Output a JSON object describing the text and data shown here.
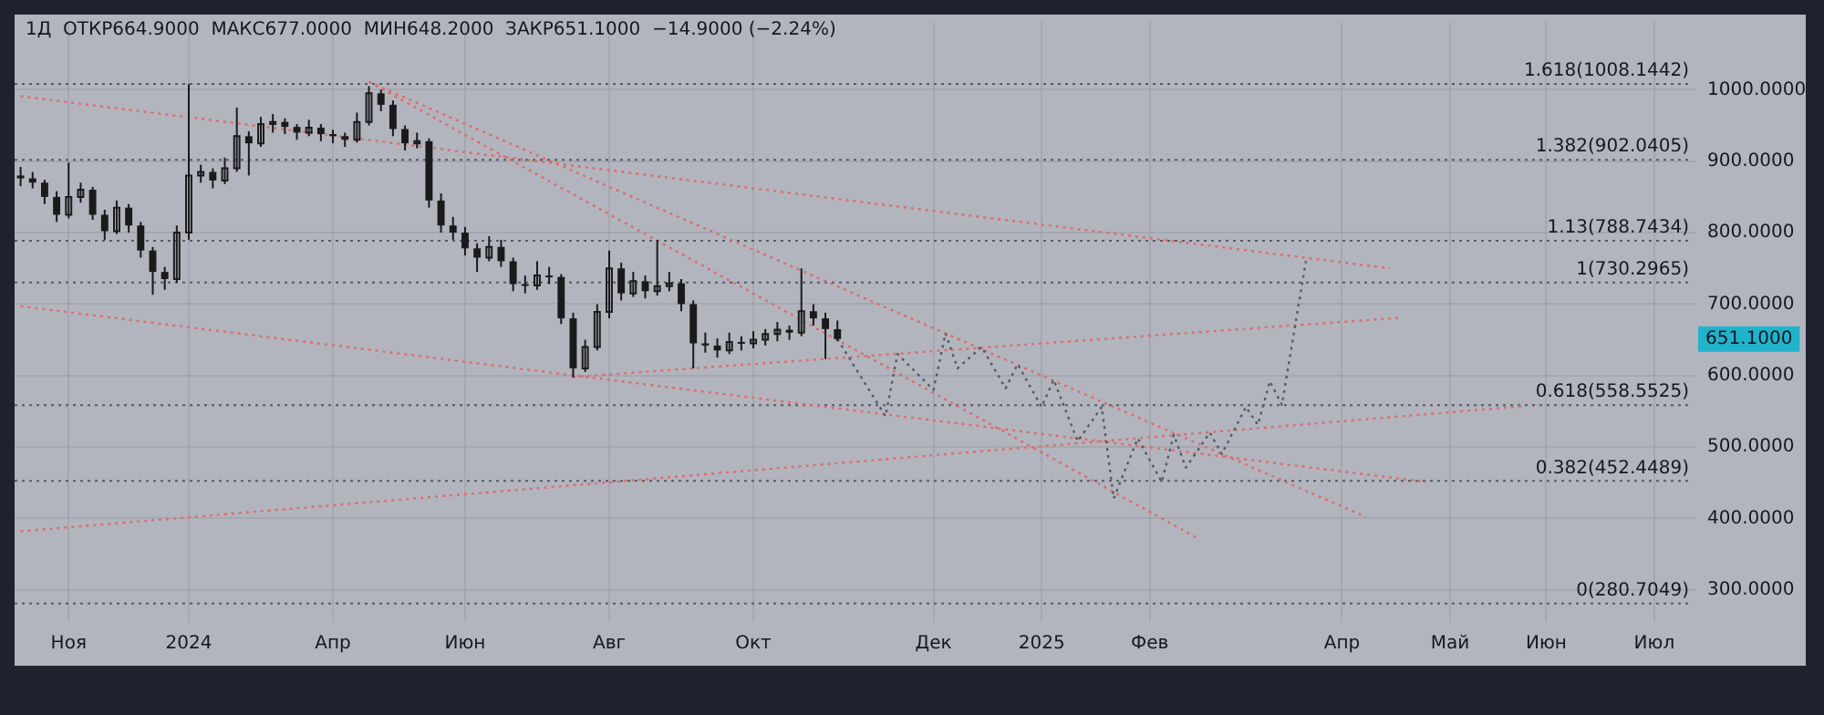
{
  "chart_data": {
    "type": "candlestick",
    "title": "1Д  ОТКР664.9000  МАКС677.0000  МИН648.2000  ЗАКР651.1000  −14.9000 (−2.24%)",
    "color": "#1a1a1a",
    "grid": true,
    "legend": false,
    "marker": "none",
    "categories": [
      null,
      null,
      null,
      null,
      "Ноя",
      null,
      null,
      null,
      null,
      null,
      null,
      null,
      null,
      null,
      "2024",
      null,
      null,
      null,
      null,
      null,
      null,
      null,
      null,
      null,
      null,
      null,
      "Апр",
      null,
      null,
      null,
      null,
      null,
      null,
      null,
      null,
      null,
      null,
      "Июн",
      null,
      null,
      null,
      null,
      null,
      null,
      null,
      null,
      null,
      null,
      null,
      "Авг",
      null,
      null,
      null,
      null,
      null,
      null,
      null,
      null,
      null,
      null,
      null,
      "Окт",
      null,
      null,
      null,
      null,
      null,
      null,
      null,
      null,
      null,
      null,
      null,
      null,
      null,
      null,
      "Дек",
      null,
      null,
      null,
      null,
      null,
      null,
      null,
      null,
      "2025",
      null,
      null,
      null,
      null,
      null,
      null,
      null,
      null,
      "Фев",
      null,
      null,
      null,
      null,
      null,
      null,
      null,
      null,
      null,
      null,
      null,
      null,
      null,
      null,
      null,
      "Апр",
      null,
      null,
      null,
      null,
      null,
      null,
      null,
      null,
      "Май",
      null,
      null,
      null,
      null,
      null,
      null,
      null,
      "Июн",
      null,
      null,
      null,
      null,
      null,
      null,
      null,
      null,
      "Июл",
      null,
      null,
      null
    ],
    "ohlc": [
      [
        880,
        892,
        865,
        876
      ],
      [
        876,
        885,
        862,
        870
      ],
      [
        870,
        874,
        840,
        850
      ],
      [
        850,
        858,
        815,
        825
      ],
      [
        825,
        898,
        820,
        850
      ],
      [
        850,
        870,
        842,
        860
      ],
      [
        860,
        864,
        818,
        825
      ],
      [
        825,
        832,
        790,
        802
      ],
      [
        802,
        845,
        798,
        835
      ],
      [
        835,
        840,
        800,
        810
      ],
      [
        810,
        815,
        765,
        775
      ],
      [
        775,
        780,
        713,
        745
      ],
      [
        745,
        752,
        720,
        735
      ],
      [
        735,
        810,
        730,
        800
      ],
      [
        800,
        1008,
        790,
        880
      ],
      [
        880,
        895,
        870,
        885
      ],
      [
        885,
        890,
        862,
        873
      ],
      [
        873,
        905,
        868,
        890
      ],
      [
        890,
        975,
        885,
        935
      ],
      [
        935,
        942,
        880,
        925
      ],
      [
        925,
        962,
        920,
        952
      ],
      [
        952,
        966,
        940,
        955
      ],
      [
        955,
        960,
        938,
        948
      ],
      [
        948,
        952,
        930,
        940
      ],
      [
        940,
        958,
        935,
        947
      ],
      [
        947,
        952,
        928,
        938
      ],
      [
        938,
        944,
        925,
        935
      ],
      [
        935,
        940,
        920,
        930
      ],
      [
        930,
        968,
        926,
        955
      ],
      [
        955,
        1005,
        950,
        995
      ],
      [
        995,
        1000,
        970,
        979
      ],
      [
        979,
        985,
        935,
        945
      ],
      [
        945,
        950,
        915,
        925
      ],
      [
        925,
        940,
        918,
        928
      ],
      [
        928,
        932,
        835,
        845
      ],
      [
        845,
        855,
        800,
        810
      ],
      [
        810,
        822,
        790,
        800
      ],
      [
        800,
        808,
        768,
        778
      ],
      [
        778,
        785,
        745,
        765
      ],
      [
        765,
        795,
        760,
        780
      ],
      [
        780,
        790,
        752,
        760
      ],
      [
        760,
        765,
        718,
        728
      ],
      [
        728,
        740,
        715,
        726
      ],
      [
        726,
        760,
        720,
        740
      ],
      [
        740,
        752,
        728,
        738
      ],
      [
        738,
        742,
        672,
        680
      ],
      [
        680,
        688,
        597,
        610
      ],
      [
        610,
        650,
        605,
        640
      ],
      [
        640,
        700,
        635,
        689
      ],
      [
        689,
        775,
        680,
        750
      ],
      [
        750,
        758,
        705,
        715
      ],
      [
        715,
        745,
        710,
        732
      ],
      [
        732,
        740,
        708,
        718
      ],
      [
        718,
        790,
        712,
        725
      ],
      [
        725,
        745,
        718,
        729
      ],
      [
        729,
        735,
        690,
        700
      ],
      [
        700,
        705,
        610,
        645
      ],
      [
        645,
        660,
        632,
        642
      ],
      [
        642,
        652,
        625,
        635
      ],
      [
        635,
        660,
        630,
        647
      ],
      [
        647,
        655,
        635,
        645
      ],
      [
        645,
        662,
        638,
        650
      ],
      [
        650,
        665,
        642,
        658
      ],
      [
        658,
        675,
        648,
        664
      ],
      [
        664,
        670,
        650,
        660
      ],
      [
        660,
        750,
        655,
        690
      ],
      [
        690,
        700,
        670,
        680
      ],
      [
        680,
        688,
        623,
        665
      ],
      [
        664.9,
        677,
        648.2,
        651.1
      ],
      null,
      null,
      null,
      null,
      null,
      null,
      null,
      null,
      null,
      null,
      null,
      null,
      null,
      null,
      null,
      null,
      null,
      null,
      null,
      null,
      null,
      null,
      null,
      null,
      null,
      null,
      null,
      null,
      null,
      null,
      null,
      null,
      null,
      null,
      null,
      null,
      null,
      null,
      null,
      null,
      null,
      null,
      null,
      null,
      null,
      null,
      null,
      null,
      null,
      null,
      null,
      null,
      null,
      null,
      null,
      null,
      null,
      null,
      null,
      null,
      null,
      null,
      null,
      null,
      null,
      null,
      null,
      null,
      null,
      null,
      null
    ],
    "series": [
      {
        "type": "line",
        "color": "#555a66",
        "line_style": "dotted",
        "values": [
          null,
          null,
          null,
          null,
          null,
          null,
          null,
          null,
          null,
          null,
          null,
          null,
          null,
          null,
          null,
          null,
          null,
          null,
          null,
          null,
          null,
          null,
          null,
          null,
          null,
          null,
          null,
          null,
          null,
          null,
          null,
          null,
          null,
          null,
          null,
          null,
          null,
          null,
          null,
          null,
          null,
          null,
          null,
          null,
          null,
          null,
          null,
          null,
          null,
          null,
          null,
          null,
          null,
          null,
          null,
          null,
          null,
          null,
          null,
          null,
          null,
          null,
          null,
          null,
          null,
          null,
          null,
          null,
          651,
          null,
          null,
          null,
          543,
          630,
          null,
          null,
          580,
          659,
          610,
          null,
          640,
          null,
          582,
          616,
          null,
          556,
          594,
          null,
          508,
          null,
          556,
          428,
          null,
          512,
          null,
          451,
          517,
          471,
          null,
          520,
          490,
          null,
          556,
          531,
          592,
          559,
          null,
          760,
          null,
          null,
          null,
          null,
          null,
          null,
          null,
          null,
          null,
          null,
          null,
          null,
          null,
          null,
          null,
          null,
          null,
          null,
          null,
          null,
          null,
          null,
          null,
          null,
          null,
          null,
          null,
          null,
          null,
          null,
          null,
          null
        ]
      },
      {
        "type": "line",
        "color": "#e06b6b",
        "line_style": "dotted",
        "values": [
          991,
          null,
          null,
          null,
          null,
          null,
          null,
          null,
          null,
          null,
          null,
          null,
          null,
          null,
          null,
          null,
          null,
          null,
          null,
          null,
          null,
          null,
          null,
          null,
          null,
          null,
          null,
          null,
          null,
          null,
          null,
          null,
          null,
          null,
          null,
          null,
          null,
          null,
          null,
          null,
          null,
          null,
          null,
          null,
          null,
          null,
          null,
          null,
          null,
          null,
          null,
          null,
          null,
          null,
          null,
          null,
          null,
          null,
          null,
          null,
          null,
          null,
          null,
          null,
          null,
          null,
          null,
          null,
          null,
          null,
          null,
          null,
          null,
          null,
          null,
          null,
          null,
          null,
          null,
          null,
          null,
          null,
          null,
          null,
          null,
          null,
          null,
          null,
          null,
          null,
          null,
          null,
          null,
          null,
          null,
          null,
          null,
          null,
          null,
          null,
          null,
          null,
          null,
          null,
          null,
          null,
          null,
          null,
          null,
          null,
          null,
          null,
          null,
          null,
          750,
          null,
          null,
          null,
          null,
          null,
          null,
          null,
          null,
          null,
          null,
          null,
          null,
          null,
          null,
          null,
          null,
          null,
          null,
          null,
          null,
          null,
          null,
          null,
          null,
          null
        ]
      },
      {
        "type": "line",
        "color": "#e06b6b",
        "line_style": "dotted",
        "values": [
          null,
          null,
          null,
          null,
          null,
          null,
          null,
          null,
          null,
          null,
          null,
          null,
          null,
          null,
          null,
          null,
          null,
          null,
          null,
          null,
          null,
          null,
          null,
          null,
          null,
          null,
          null,
          null,
          null,
          1011,
          null,
          null,
          null,
          null,
          null,
          null,
          null,
          null,
          null,
          null,
          null,
          null,
          null,
          null,
          null,
          null,
          null,
          null,
          null,
          null,
          null,
          null,
          null,
          null,
          null,
          null,
          null,
          null,
          null,
          null,
          null,
          null,
          null,
          null,
          null,
          null,
          null,
          null,
          null,
          null,
          null,
          null,
          null,
          null,
          null,
          null,
          null,
          null,
          null,
          null,
          null,
          null,
          null,
          null,
          null,
          null,
          null,
          null,
          null,
          null,
          null,
          null,
          null,
          null,
          null,
          null,
          null,
          null,
          null,
          null,
          null,
          null,
          null,
          null,
          null,
          null,
          null,
          null,
          null,
          null,
          null,
          null,
          402,
          null,
          null,
          null,
          null,
          null,
          null,
          null,
          null,
          null,
          null,
          null,
          null,
          null,
          null,
          null,
          null,
          null,
          null,
          null,
          null,
          null,
          null,
          null,
          null,
          null,
          null,
          null
        ]
      },
      {
        "type": "line",
        "color": "#e06b6b",
        "line_style": "dotted",
        "values": [
          null,
          null,
          null,
          null,
          null,
          null,
          null,
          null,
          null,
          null,
          null,
          null,
          null,
          null,
          null,
          null,
          null,
          null,
          null,
          null,
          null,
          null,
          null,
          null,
          null,
          null,
          null,
          null,
          null,
          1011,
          null,
          null,
          null,
          null,
          null,
          null,
          null,
          null,
          null,
          null,
          null,
          null,
          null,
          null,
          null,
          null,
          null,
          null,
          null,
          null,
          null,
          null,
          null,
          null,
          null,
          null,
          null,
          null,
          null,
          null,
          null,
          null,
          null,
          null,
          null,
          null,
          null,
          null,
          null,
          null,
          null,
          null,
          null,
          null,
          null,
          null,
          null,
          null,
          null,
          null,
          null,
          null,
          null,
          null,
          null,
          null,
          null,
          null,
          null,
          null,
          null,
          null,
          null,
          null,
          null,
          null,
          null,
          null,
          372,
          null,
          null,
          null,
          null,
          null,
          null,
          null,
          null,
          null,
          null,
          null,
          null,
          null,
          null,
          null,
          null,
          null,
          null,
          null,
          null,
          null,
          null,
          null,
          null,
          null,
          null,
          null,
          null,
          null,
          null,
          null,
          null,
          null,
          null,
          null,
          null,
          null,
          null,
          null,
          null,
          null
        ]
      },
      {
        "type": "line",
        "color": "#e06b6b",
        "line_style": "dotted",
        "values": [
          697,
          null,
          null,
          null,
          null,
          null,
          null,
          null,
          null,
          null,
          null,
          null,
          null,
          null,
          null,
          null,
          null,
          null,
          null,
          null,
          null,
          null,
          null,
          null,
          null,
          null,
          null,
          null,
          null,
          null,
          null,
          null,
          null,
          null,
          null,
          null,
          null,
          null,
          null,
          null,
          null,
          null,
          null,
          null,
          null,
          null,
          null,
          null,
          null,
          null,
          null,
          null,
          null,
          null,
          null,
          null,
          null,
          null,
          null,
          null,
          null,
          null,
          null,
          null,
          null,
          null,
          null,
          null,
          null,
          null,
          null,
          null,
          null,
          null,
          null,
          null,
          null,
          null,
          null,
          null,
          null,
          null,
          null,
          null,
          null,
          null,
          null,
          null,
          null,
          null,
          null,
          null,
          null,
          null,
          null,
          null,
          null,
          null,
          null,
          null,
          null,
          null,
          null,
          null,
          null,
          null,
          null,
          null,
          null,
          null,
          null,
          null,
          null,
          null,
          null,
          null,
          null,
          451,
          null,
          null,
          null,
          null,
          null,
          null,
          null,
          null,
          null,
          null,
          null,
          null,
          null,
          null,
          null,
          null,
          null,
          null,
          null,
          null,
          null,
          null
        ]
      },
      {
        "type": "line",
        "color": "#e06b6b",
        "line_style": "dotted",
        "values": [
          382,
          null,
          null,
          null,
          null,
          null,
          null,
          null,
          null,
          null,
          null,
          null,
          null,
          null,
          null,
          null,
          null,
          null,
          null,
          null,
          null,
          null,
          null,
          null,
          null,
          null,
          null,
          null,
          null,
          null,
          null,
          null,
          null,
          null,
          null,
          null,
          null,
          null,
          null,
          null,
          null,
          null,
          null,
          null,
          null,
          null,
          null,
          null,
          null,
          null,
          null,
          null,
          null,
          null,
          null,
          null,
          null,
          null,
          null,
          null,
          null,
          null,
          null,
          null,
          null,
          null,
          null,
          null,
          null,
          null,
          null,
          null,
          null,
          null,
          null,
          null,
          null,
          null,
          null,
          null,
          null,
          null,
          null,
          null,
          null,
          null,
          null,
          null,
          null,
          null,
          null,
          null,
          null,
          null,
          null,
          null,
          null,
          null,
          null,
          null,
          null,
          null,
          null,
          null,
          null,
          null,
          null,
          null,
          null,
          null,
          null,
          null,
          null,
          null,
          null,
          null,
          null,
          null,
          null,
          null,
          null,
          null,
          null,
          null,
          null,
          557,
          null,
          null,
          null,
          null,
          null,
          null,
          null,
          null,
          null,
          null,
          null,
          null,
          null,
          null
        ]
      },
      {
        "type": "line",
        "color": "#e06b6b",
        "line_style": "dotted",
        "values": [
          null,
          null,
          null,
          null,
          null,
          null,
          null,
          null,
          null,
          null,
          null,
          null,
          null,
          null,
          null,
          null,
          null,
          null,
          null,
          null,
          null,
          null,
          null,
          null,
          null,
          null,
          null,
          null,
          null,
          null,
          null,
          null,
          null,
          null,
          null,
          null,
          null,
          null,
          null,
          null,
          null,
          null,
          null,
          null,
          null,
          null,
          598,
          null,
          null,
          null,
          null,
          null,
          null,
          null,
          null,
          null,
          null,
          null,
          null,
          null,
          null,
          null,
          null,
          null,
          null,
          null,
          null,
          null,
          null,
          null,
          null,
          null,
          null,
          null,
          null,
          null,
          null,
          null,
          null,
          null,
          null,
          null,
          null,
          null,
          null,
          null,
          null,
          null,
          null,
          null,
          null,
          null,
          null,
          null,
          null,
          null,
          null,
          null,
          null,
          null,
          null,
          null,
          null,
          null,
          null,
          null,
          null,
          null,
          null,
          null,
          null,
          null,
          null,
          null,
          null,
          681,
          null,
          null,
          null,
          null,
          null,
          null,
          null,
          null,
          null,
          null,
          null,
          null,
          null,
          null,
          null,
          null,
          null,
          null,
          null,
          null,
          null,
          null,
          null,
          null
        ]
      }
    ],
    "ylim": [
      255,
      1095
    ],
    "yticks": [
      {
        "value": 300,
        "label": "300.0000"
      },
      {
        "value": 400,
        "label": "400.0000"
      },
      {
        "value": 500,
        "label": "500.0000"
      },
      {
        "value": 600,
        "label": "600.0000"
      },
      {
        "value": 700,
        "label": "700.0000"
      },
      {
        "value": 800,
        "label": "800.0000"
      },
      {
        "value": 900,
        "label": "900.0000"
      },
      {
        "value": 1000,
        "label": "1000.0000"
      }
    ],
    "ref_lines": [
      {
        "axis": "y",
        "value": 1008.1442,
        "label": "1.618(1008.1442)",
        "color": "#555a66",
        "line_style": "dotted"
      },
      {
        "axis": "y",
        "value": 902.0405,
        "label": "1.382(902.0405)",
        "color": "#555a66",
        "line_style": "dotted"
      },
      {
        "axis": "y",
        "value": 788.7434,
        "label": "1.13(788.7434)",
        "color": "#555a66",
        "line_style": "dotted"
      },
      {
        "axis": "y",
        "value": 730.2965,
        "label": "1(730.2965)",
        "color": "#555a66",
        "line_style": "dotted"
      },
      {
        "axis": "y",
        "value": 558.5525,
        "label": "0.618(558.5525)",
        "color": "#555a66",
        "line_style": "dotted"
      },
      {
        "axis": "y",
        "value": 452.4489,
        "label": "0.382(452.4489)",
        "color": "#555a66",
        "line_style": "dotted"
      },
      {
        "axis": "y",
        "value": 280.7049,
        "label": "0(280.7049)",
        "color": "#555a66",
        "line_style": "dotted"
      }
    ],
    "annotations": [
      "651.1000"
    ]
  }
}
